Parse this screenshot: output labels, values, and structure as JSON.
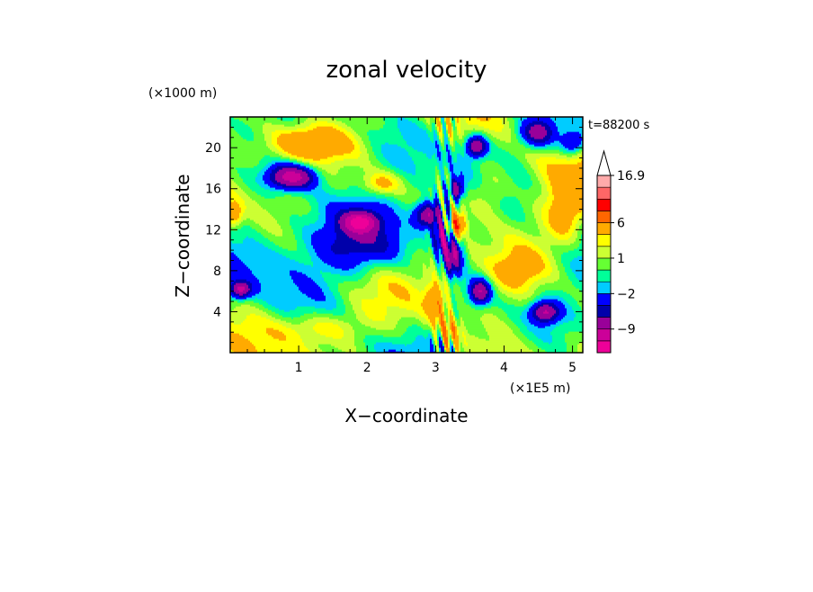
{
  "chart_data": {
    "type": "heatmap",
    "title": "zonal velocity",
    "xlabel": "X−coordinate",
    "ylabel": "Z−coordinate",
    "x_unit": "(×1E5 m)",
    "z_unit": "(×1000 m)",
    "time_label": "t=88200 s",
    "xlim": [
      0,
      5.15
    ],
    "ylim": [
      0,
      23
    ],
    "x_ticks": [
      {
        "value": 1,
        "label": "1"
      },
      {
        "value": 2,
        "label": "2"
      },
      {
        "value": 3,
        "label": "3"
      },
      {
        "value": 4,
        "label": "4"
      },
      {
        "value": 5,
        "label": "5"
      }
    ],
    "y_ticks": [
      {
        "value": 4,
        "label": "4"
      },
      {
        "value": 8,
        "label": "8"
      },
      {
        "value": 12,
        "label": "12"
      },
      {
        "value": 16,
        "label": "16"
      },
      {
        "value": 20,
        "label": "20"
      }
    ],
    "colorbar": {
      "levels": [
        -15,
        -12,
        -9,
        -6,
        -4,
        -2,
        -1,
        0,
        1,
        2,
        3,
        6,
        9,
        12,
        16.9
      ],
      "colors": [
        "#ee0099",
        "#cc0099",
        "#990099",
        "#0000aa",
        "#0000ff",
        "#00ccff",
        "#00ff99",
        "#66ff33",
        "#ccff33",
        "#ffff00",
        "#ffaa00",
        "#ff6600",
        "#ff0000",
        "#ff6666",
        "#ffaaaa"
      ],
      "tick_labels": [
        {
          "level": 16.9,
          "label": "16.9"
        },
        {
          "level": 6,
          "label": "6"
        },
        {
          "level": 1,
          "label": "1"
        },
        {
          "level": -2,
          "label": "−2"
        },
        {
          "level": -9,
          "label": "−9"
        }
      ],
      "extend": "max"
    },
    "field_features": [
      {
        "x": 0.9,
        "z": 17.2,
        "sx": 0.35,
        "sz": 1.2,
        "amp": -11
      },
      {
        "x": 1.9,
        "z": 12.8,
        "sx": 0.25,
        "sz": 1.0,
        "amp": -10
      },
      {
        "x": 0.15,
        "z": 6.2,
        "sx": 0.15,
        "sz": 0.8,
        "amp": -9
      },
      {
        "x": 2.9,
        "z": 13.5,
        "sx": 0.2,
        "sz": 1.2,
        "amp": -10
      },
      {
        "x": 3.1,
        "z": 11.5,
        "sx": 0.12,
        "sz": 1.5,
        "amp": -9
      },
      {
        "x": 3.25,
        "z": 9.5,
        "sx": 0.14,
        "sz": 1.8,
        "amp": -9
      },
      {
        "x": 3.3,
        "z": 16.0,
        "sx": 0.1,
        "sz": 1.0,
        "amp": -8
      },
      {
        "x": 3.6,
        "z": 20.2,
        "sx": 0.15,
        "sz": 1.0,
        "amp": -9
      },
      {
        "x": 3.65,
        "z": 6.0,
        "sx": 0.15,
        "sz": 1.2,
        "amp": -9
      },
      {
        "x": 4.5,
        "z": 21.5,
        "sx": 0.25,
        "sz": 1.3,
        "amp": -8
      },
      {
        "x": 4.6,
        "z": 4.0,
        "sx": 0.2,
        "sz": 1.0,
        "amp": -9
      },
      {
        "x": 5.0,
        "z": 20.5,
        "sx": 0.2,
        "sz": 1.2,
        "amp": -6
      },
      {
        "x": 2.0,
        "z": 10.5,
        "sx": 0.7,
        "sz": 2.5,
        "amp": -4
      },
      {
        "x": 3.3,
        "z": 12.5,
        "sx": 0.12,
        "sz": 1.2,
        "amp": 8
      },
      {
        "x": 3.0,
        "z": 5.0,
        "sx": 0.15,
        "sz": 2.0,
        "amp": 5
      },
      {
        "x": 3.2,
        "z": 2.0,
        "sx": 0.15,
        "sz": 1.5,
        "amp": 4
      },
      {
        "x": 2.2,
        "z": 16.5,
        "sx": 0.3,
        "sz": 1.2,
        "amp": 4
      },
      {
        "x": 0.05,
        "z": 13.5,
        "sx": 0.12,
        "sz": 1.2,
        "amp": 4
      },
      {
        "x": 4.9,
        "z": 13.5,
        "sx": 0.3,
        "sz": 3.0,
        "amp": 4
      },
      {
        "x": 1.1,
        "z": 20.5,
        "sx": 0.6,
        "sz": 1.5,
        "amp": 4
      },
      {
        "x": 1.3,
        "z": 2.5,
        "sx": 0.6,
        "sz": 1.5,
        "amp": 3
      },
      {
        "x": 4.2,
        "z": 8.0,
        "sx": 0.4,
        "sz": 2.0,
        "amp": 3
      },
      {
        "x": 3.8,
        "z": 16.0,
        "sx": 0.3,
        "sz": 2.5,
        "amp": 3
      }
    ]
  }
}
